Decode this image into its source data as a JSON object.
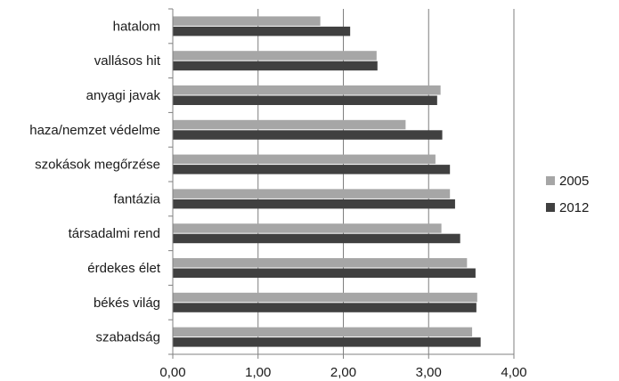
{
  "chart_data": {
    "type": "bar",
    "orientation": "horizontal",
    "categories": [
      "hatalom",
      "vallásos hit",
      "anyagi javak",
      "haza/nemzet védelme",
      "szokások megőrzése",
      "fantázia",
      "társadalmi rend",
      "érdekes élet",
      "békés világ",
      "szabadság"
    ],
    "series": [
      {
        "name": "2005",
        "color": "#a6a6a6",
        "values": [
          1.73,
          2.39,
          3.14,
          2.73,
          3.08,
          3.25,
          3.15,
          3.45,
          3.57,
          3.51
        ]
      },
      {
        "name": "2012",
        "color": "#404040",
        "values": [
          2.08,
          2.4,
          3.1,
          3.16,
          3.25,
          3.31,
          3.37,
          3.55,
          3.56,
          3.61
        ]
      }
    ],
    "xlim": [
      0,
      4
    ],
    "xticks": [
      0,
      1,
      2,
      3,
      4
    ],
    "xtick_labels": [
      "0,00",
      "1,00",
      "2,00",
      "3,00",
      "4,00"
    ],
    "grid": true,
    "legend_position": "right"
  }
}
